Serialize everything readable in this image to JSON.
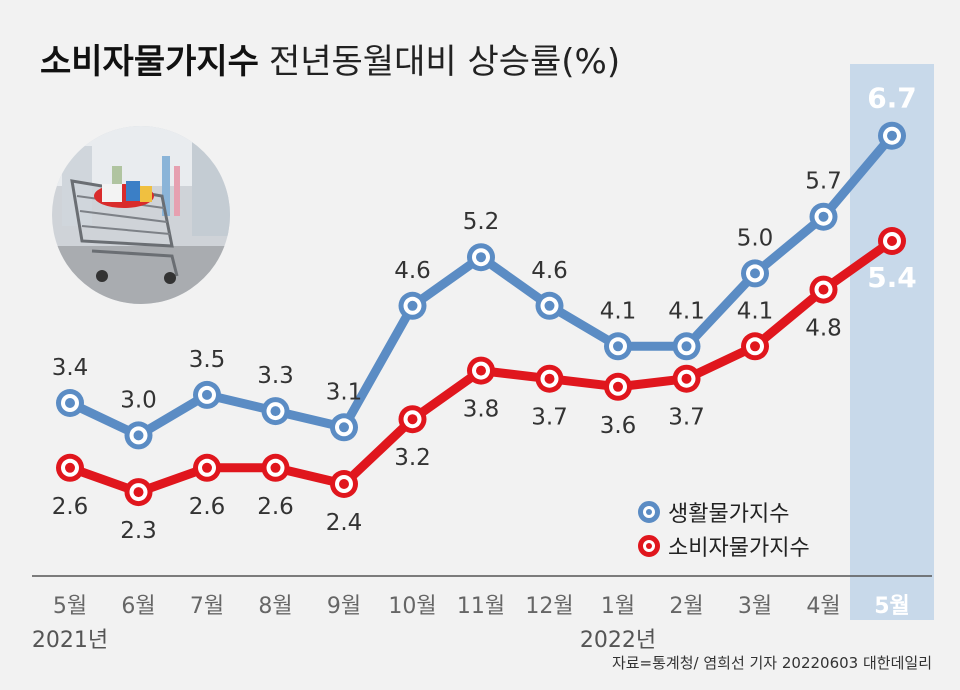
{
  "title": {
    "bold": "소비자물가지수",
    "light": "전년동월대비 상승률(%)"
  },
  "legend": [
    {
      "label": "생활물가지수",
      "color": "#5b8cc4"
    },
    {
      "label": "소비자물가지수",
      "color": "#e0161d"
    }
  ],
  "source": "자료=통계청/ 염희선 기자 20220603 대한데일리",
  "photo_icon": "shopping-cart-icon",
  "colors": {
    "blue": "#5b8cc4",
    "red": "#e0161d",
    "highlight": "#c8d9ea",
    "highlight_text": "#ffffff"
  },
  "chart_data": {
    "type": "line",
    "categories": [
      "5월",
      "6월",
      "7월",
      "8월",
      "9월",
      "10월",
      "11월",
      "12월",
      "1월",
      "2월",
      "3월",
      "4월",
      "5월"
    ],
    "year_labels": [
      {
        "index": 0,
        "label": "2021년"
      },
      {
        "index": 8,
        "label": "2022년"
      }
    ],
    "highlight_index": 12,
    "series": [
      {
        "name": "생활물가지수",
        "values": [
          3.4,
          3.0,
          3.5,
          3.3,
          3.1,
          4.6,
          5.2,
          4.6,
          4.1,
          4.1,
          5.0,
          5.7,
          6.7
        ]
      },
      {
        "name": "소비자물가지수",
        "values": [
          2.6,
          2.3,
          2.6,
          2.6,
          2.4,
          3.2,
          3.8,
          3.7,
          3.6,
          3.7,
          4.1,
          4.8,
          5.4
        ]
      }
    ],
    "label_positions": {
      "생활물가지수": [
        "above",
        "above",
        "above",
        "above",
        "above",
        "above",
        "above",
        "above",
        "above",
        "above",
        "above",
        "above",
        "above"
      ],
      "소비자물가지수": [
        "below",
        "below",
        "below",
        "below",
        "below",
        "below",
        "below",
        "below",
        "below",
        "below",
        "above",
        "below",
        "below"
      ]
    },
    "grid": false
  }
}
